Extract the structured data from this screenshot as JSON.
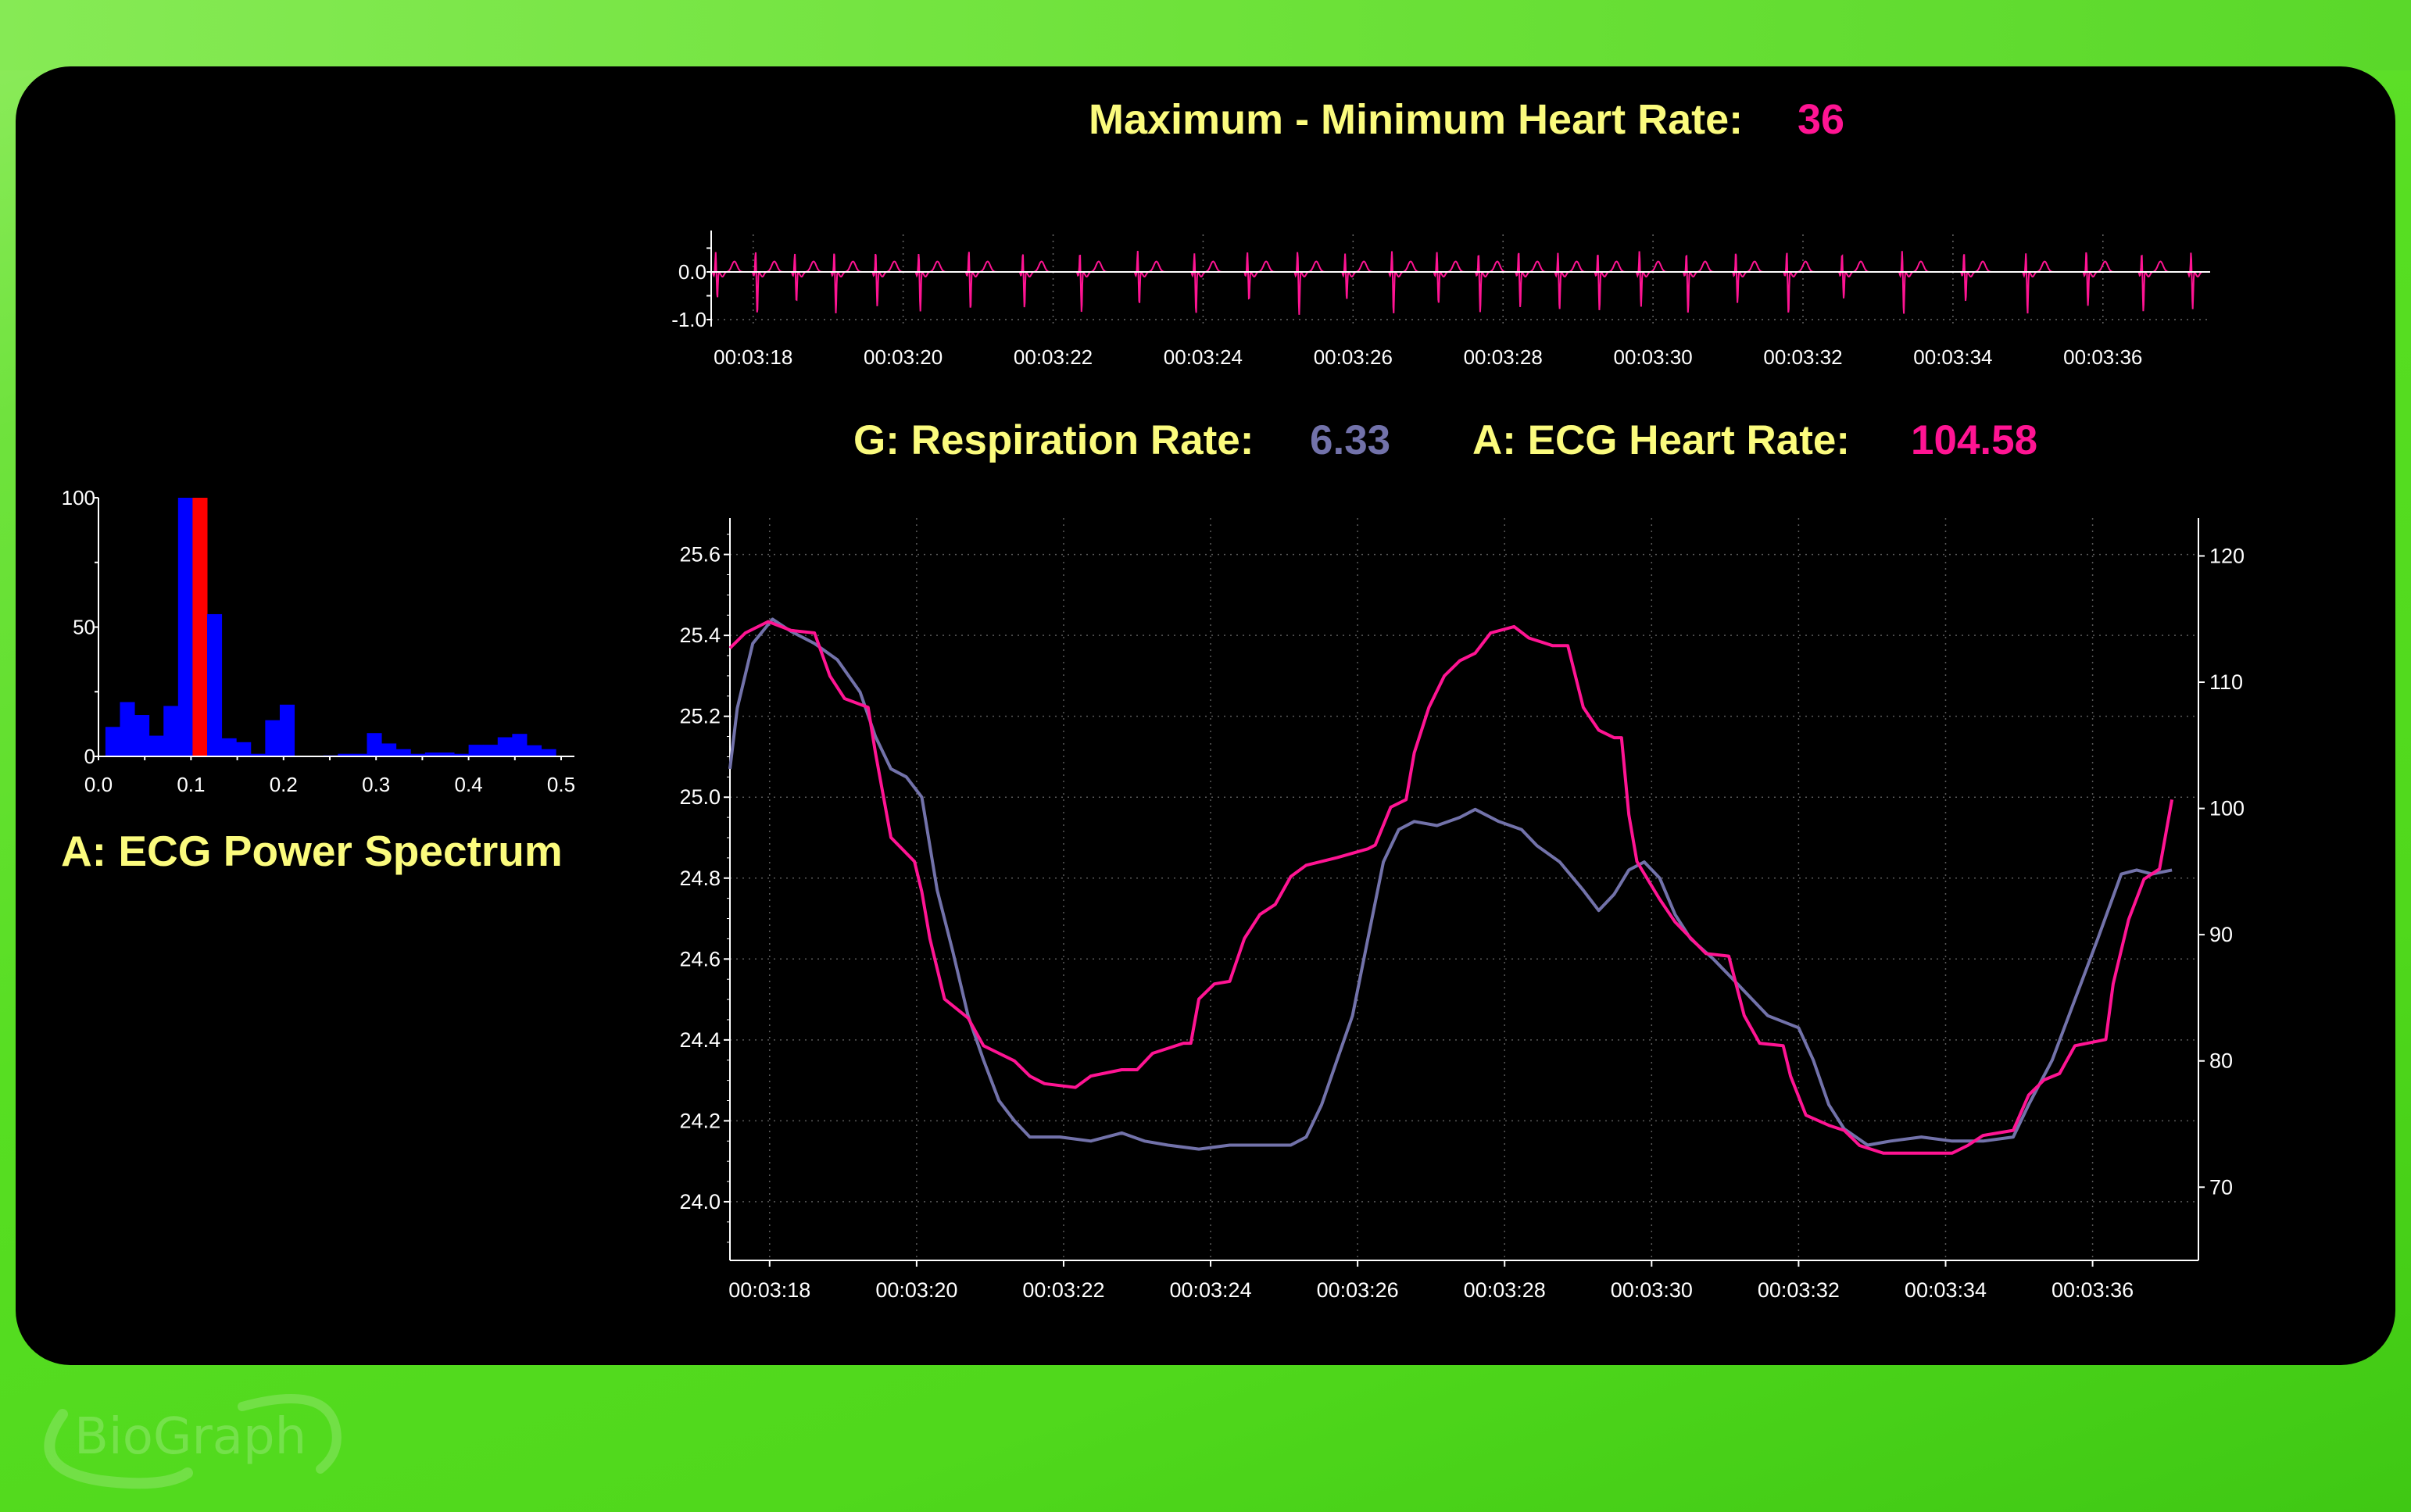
{
  "header": {
    "title_label": "Maximum - Minimum Heart Rate:",
    "title_value": "36"
  },
  "readouts": {
    "respiration_label": "G: Respiration Rate:",
    "respiration_value": "6.33",
    "heart_rate_label": "A: ECG Heart Rate:",
    "heart_rate_value": "104.58"
  },
  "spectrum_title": "A: ECG Power Spectrum",
  "logo": "BioGraph",
  "colors": {
    "heart": "#ff1493",
    "resp": "#7272aa",
    "label": "#fbfb7d",
    "spectrum_bar": "#0000ff",
    "spectrum_highlight": "#ff0000"
  },
  "chart_data": [
    {
      "name": "ecg-power-spectrum",
      "type": "bar",
      "title": "A: ECG Power Spectrum",
      "xlim": [
        0,
        0.5
      ],
      "ylim": [
        0,
        100
      ],
      "x_ticks": [
        "0.0",
        "0.1",
        "0.2",
        "0.3",
        "0.4",
        "0.5"
      ],
      "y_ticks": [
        "0",
        "50",
        "100"
      ],
      "bin_start": 0.0075,
      "bin_width": 0.0157,
      "highlight_index": 6,
      "values": [
        11.4,
        21,
        16,
        8,
        19.5,
        100,
        100,
        55,
        7,
        5.5,
        1,
        14,
        20,
        0.3,
        0,
        0.4,
        1,
        1,
        9,
        5,
        2.8,
        1,
        1.5,
        1.5,
        1,
        4.5,
        4.5,
        7.4,
        8.7,
        4.3,
        2.8,
        0
      ]
    },
    {
      "name": "ecg-raw-strip",
      "type": "line",
      "ylim": [
        -1.2,
        0.9
      ],
      "y_ticks": [
        "0.0",
        "-1.0"
      ],
      "xlim_seconds": [
        17.44,
        37.43
      ],
      "x_ticks": [
        "00:03:18",
        "00:03:20",
        "00:03:22",
        "00:03:24",
        "00:03:26",
        "00:03:28",
        "00:03:30",
        "00:03:32",
        "00:03:34",
        "00:03:36"
      ]
    },
    {
      "name": "respiration-heart-rate",
      "type": "line",
      "xlim_seconds": [
        17.46,
        37.44
      ],
      "x_ticks": [
        "00:03:18",
        "00:03:20",
        "00:03:22",
        "00:03:24",
        "00:03:26",
        "00:03:28",
        "00:03:30",
        "00:03:32",
        "00:03:34",
        "00:03:36"
      ],
      "y_left": {
        "ticks": [
          "25.6",
          "25.4",
          "25.2",
          "25.0",
          "24.8",
          "24.6",
          "24.4",
          "24.2",
          "24.0"
        ],
        "ylim": [
          23.855,
          25.69
        ]
      },
      "y_right": {
        "ticks": [
          "120",
          "110",
          "100",
          "90",
          "80",
          "70"
        ],
        "ylim": [
          64.2,
          123.0
        ]
      },
      "series": [
        {
          "name": "G: Respiration",
          "axis": "left",
          "points": [
            [
              17.46,
              25.07
            ],
            [
              17.56,
              25.22
            ],
            [
              17.77,
              25.38
            ],
            [
              18.04,
              25.44
            ],
            [
              18.29,
              25.41
            ],
            [
              18.61,
              25.38
            ],
            [
              18.92,
              25.34
            ],
            [
              19.23,
              25.26
            ],
            [
              19.44,
              25.15
            ],
            [
              19.65,
              25.07
            ],
            [
              19.86,
              25.05
            ],
            [
              20.07,
              25.0
            ],
            [
              20.28,
              24.77
            ],
            [
              20.49,
              24.62
            ],
            [
              20.7,
              24.46
            ],
            [
              20.91,
              24.35
            ],
            [
              21.12,
              24.25
            ],
            [
              21.33,
              24.2
            ],
            [
              21.54,
              24.16
            ],
            [
              21.95,
              24.16
            ],
            [
              22.37,
              24.15
            ],
            [
              22.79,
              24.17
            ],
            [
              23.1,
              24.15
            ],
            [
              23.42,
              24.14
            ],
            [
              23.84,
              24.13
            ],
            [
              24.26,
              24.14
            ],
            [
              24.67,
              24.14
            ],
            [
              25.09,
              24.14
            ],
            [
              25.3,
              24.16
            ],
            [
              25.51,
              24.24
            ],
            [
              25.72,
              24.35
            ],
            [
              25.93,
              24.46
            ],
            [
              26.14,
              24.65
            ],
            [
              26.35,
              24.84
            ],
            [
              26.56,
              24.92
            ],
            [
              26.77,
              24.94
            ],
            [
              27.08,
              24.93
            ],
            [
              27.39,
              24.95
            ],
            [
              27.6,
              24.97
            ],
            [
              27.92,
              24.94
            ],
            [
              28.23,
              24.92
            ],
            [
              28.44,
              24.88
            ],
            [
              28.75,
              24.84
            ],
            [
              29.07,
              24.77
            ],
            [
              29.28,
              24.72
            ],
            [
              29.49,
              24.76
            ],
            [
              29.69,
              24.82
            ],
            [
              29.9,
              24.84
            ],
            [
              30.11,
              24.8
            ],
            [
              30.32,
              24.71
            ],
            [
              30.53,
              24.65
            ],
            [
              30.84,
              24.6
            ],
            [
              31.16,
              24.54
            ],
            [
              31.58,
              24.46
            ],
            [
              32.0,
              24.43
            ],
            [
              32.2,
              24.35
            ],
            [
              32.41,
              24.24
            ],
            [
              32.62,
              24.18
            ],
            [
              32.94,
              24.14
            ],
            [
              33.25,
              24.15
            ],
            [
              33.67,
              24.16
            ],
            [
              34.09,
              24.15
            ],
            [
              34.51,
              24.15
            ],
            [
              34.92,
              24.16
            ],
            [
              35.13,
              24.24
            ],
            [
              35.45,
              24.35
            ],
            [
              35.76,
              24.5
            ],
            [
              36.07,
              24.65
            ],
            [
              36.39,
              24.81
            ],
            [
              36.6,
              24.82
            ],
            [
              36.81,
              24.81
            ],
            [
              37.08,
              24.82
            ]
          ]
        },
        {
          "name": "A: ECG Heart Rate",
          "axis": "right",
          "points": [
            [
              17.46,
              112.7
            ],
            [
              17.67,
              113.9
            ],
            [
              17.98,
              114.8
            ],
            [
              18.29,
              114.1
            ],
            [
              18.61,
              113.9
            ],
            [
              18.82,
              110.5
            ],
            [
              19.02,
              108.7
            ],
            [
              19.34,
              108.0
            ],
            [
              19.44,
              104.4
            ],
            [
              19.65,
              97.7
            ],
            [
              19.97,
              95.8
            ],
            [
              20.07,
              93.4
            ],
            [
              20.18,
              89.7
            ],
            [
              20.38,
              84.9
            ],
            [
              20.7,
              83.4
            ],
            [
              20.91,
              81.2
            ],
            [
              21.33,
              80.0
            ],
            [
              21.54,
              78.8
            ],
            [
              21.74,
              78.2
            ],
            [
              22.16,
              77.9
            ],
            [
              22.37,
              78.8
            ],
            [
              22.79,
              79.3
            ],
            [
              23.0,
              79.3
            ],
            [
              23.21,
              80.6
            ],
            [
              23.63,
              81.4
            ],
            [
              23.73,
              81.4
            ],
            [
              23.84,
              84.9
            ],
            [
              24.05,
              86.1
            ],
            [
              24.26,
              86.3
            ],
            [
              24.46,
              89.7
            ],
            [
              24.67,
              91.6
            ],
            [
              24.88,
              92.4
            ],
            [
              25.09,
              94.6
            ],
            [
              25.3,
              95.5
            ],
            [
              25.72,
              96.1
            ],
            [
              26.14,
              96.8
            ],
            [
              26.24,
              97.1
            ],
            [
              26.45,
              100.1
            ],
            [
              26.66,
              100.7
            ],
            [
              26.77,
              104.4
            ],
            [
              26.97,
              108.0
            ],
            [
              27.18,
              110.5
            ],
            [
              27.39,
              111.7
            ],
            [
              27.6,
              112.3
            ],
            [
              27.81,
              113.9
            ],
            [
              28.13,
              114.4
            ],
            [
              28.33,
              113.5
            ],
            [
              28.65,
              112.9
            ],
            [
              28.86,
              112.9
            ],
            [
              29.07,
              108.0
            ],
            [
              29.28,
              106.2
            ],
            [
              29.49,
              105.6
            ],
            [
              29.59,
              105.6
            ],
            [
              29.69,
              99.5
            ],
            [
              29.8,
              95.8
            ],
            [
              30.11,
              92.8
            ],
            [
              30.32,
              91.0
            ],
            [
              30.74,
              88.5
            ],
            [
              31.05,
              88.3
            ],
            [
              31.26,
              83.6
            ],
            [
              31.47,
              81.4
            ],
            [
              31.79,
              81.2
            ],
            [
              31.89,
              78.8
            ],
            [
              32.1,
              75.7
            ],
            [
              32.41,
              74.9
            ],
            [
              32.62,
              74.5
            ],
            [
              32.83,
              73.3
            ],
            [
              33.15,
              72.7
            ],
            [
              33.56,
              72.7
            ],
            [
              34.09,
              72.7
            ],
            [
              34.3,
              73.3
            ],
            [
              34.51,
              74.1
            ],
            [
              34.92,
              74.5
            ],
            [
              35.13,
              77.3
            ],
            [
              35.34,
              78.5
            ],
            [
              35.55,
              79.0
            ],
            [
              35.76,
              81.2
            ],
            [
              36.18,
              81.7
            ],
            [
              36.28,
              86.1
            ],
            [
              36.49,
              91.2
            ],
            [
              36.7,
              94.4
            ],
            [
              36.91,
              95.2
            ],
            [
              37.08,
              100.7
            ]
          ]
        }
      ]
    }
  ]
}
